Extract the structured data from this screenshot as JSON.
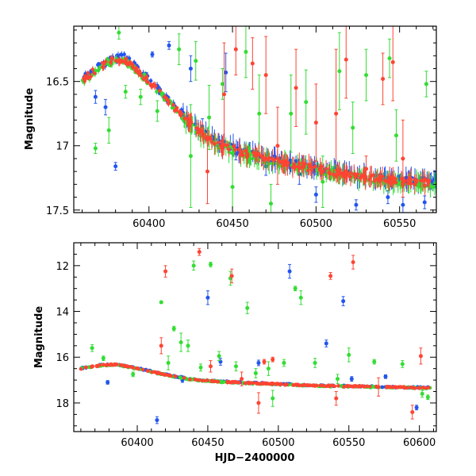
{
  "chart_data": [
    {
      "type": "scatter",
      "panel": "top",
      "title": "",
      "xlabel": "",
      "ylabel": "Magnitude",
      "xlim": [
        60355,
        60572
      ],
      "ylim": [
        17.52,
        16.07
      ],
      "y_inverted": true,
      "grid": false,
      "x_ticks": [
        60400,
        60450,
        60500,
        60550
      ],
      "y_ticks": [
        16.5,
        17,
        17.5
      ],
      "x_tick_labels": [
        "60400",
        "60450",
        "60500",
        "60550"
      ],
      "y_tick_labels": [
        "16.5",
        "17",
        "17.5"
      ],
      "series": [
        {
          "color": "#2255ee",
          "trend_anchors": [
            [
              60360,
              16.48
            ],
            [
              60375,
              16.34
            ],
            [
              60385,
              16.31
            ],
            [
              60395,
              16.42
            ],
            [
              60410,
              16.62
            ],
            [
              60425,
              16.82
            ],
            [
              60440,
              16.97
            ],
            [
              60460,
              17.06
            ],
            [
              60480,
              17.12
            ],
            [
              60500,
              17.17
            ],
            [
              60520,
              17.22
            ],
            [
              60540,
              17.25
            ],
            [
              60560,
              17.27
            ],
            [
              60572,
              17.28
            ]
          ],
          "outliers": [
            [
              60368,
              16.62,
              0.05
            ],
            [
              60374,
              16.7,
              0.06
            ],
            [
              60380,
              17.16,
              0.03
            ],
            [
              60402,
              16.29,
              0.02
            ],
            [
              60412,
              16.22,
              0.03
            ],
            [
              60425,
              16.4,
              0.1
            ],
            [
              60432,
              16.85,
              0.06
            ],
            [
              60446,
              16.43,
              0.15
            ],
            [
              60452,
              17.06,
              0.05
            ],
            [
              60470,
              17.16,
              0.07
            ],
            [
              60490,
              17.22,
              0.08
            ],
            [
              60500,
              17.38,
              0.06
            ],
            [
              60524,
              17.46,
              0.04
            ],
            [
              60543,
              17.4,
              0.05
            ],
            [
              60552,
              17.46,
              0.06
            ],
            [
              60565,
              17.44,
              0.05
            ]
          ]
        },
        {
          "color": "#33dd33",
          "trend_anchors": [
            [
              60360,
              16.5
            ],
            [
              60375,
              16.36
            ],
            [
              60385,
              16.33
            ],
            [
              60395,
              16.44
            ],
            [
              60410,
              16.64
            ],
            [
              60425,
              16.84
            ],
            [
              60440,
              16.99
            ],
            [
              60460,
              17.08
            ],
            [
              60480,
              17.14
            ],
            [
              60500,
              17.19
            ],
            [
              60520,
              17.24
            ],
            [
              60540,
              17.27
            ],
            [
              60560,
              17.29
            ],
            [
              60572,
              17.3
            ]
          ],
          "outliers": [
            [
              60368,
              17.02,
              0.04
            ],
            [
              60376,
              16.88,
              0.1
            ],
            [
              60382,
              16.12,
              0.05
            ],
            [
              60386,
              16.58,
              0.05
            ],
            [
              60395,
              16.62,
              0.06
            ],
            [
              60405,
              16.73,
              0.08
            ],
            [
              60418,
              16.25,
              0.12
            ],
            [
              60425,
              17.08,
              0.4
            ],
            [
              60428,
              16.34,
              0.15
            ],
            [
              60436,
              16.78,
              0.25
            ],
            [
              60444,
              16.52,
              0.12
            ],
            [
              60450,
              17.32,
              0.3
            ],
            [
              60458,
              16.27,
              0.2
            ],
            [
              60466,
              16.75,
              0.3
            ],
            [
              60473,
              17.45,
              0.15
            ],
            [
              60485,
              16.75,
              0.3
            ],
            [
              60494,
              16.66,
              0.25
            ],
            [
              60504,
              17.28,
              0.2
            ],
            [
              60514,
              16.42,
              0.3
            ],
            [
              60522,
              16.86,
              0.2
            ],
            [
              60530,
              16.45,
              0.2
            ],
            [
              60544,
              16.32,
              0.15
            ],
            [
              60548,
              16.92,
              0.2
            ],
            [
              60566,
              16.52,
              0.1
            ]
          ]
        },
        {
          "color": "#ff4433",
          "trend_anchors": [
            [
              60360,
              16.49
            ],
            [
              60375,
              16.35
            ],
            [
              60385,
              16.32
            ],
            [
              60395,
              16.43
            ],
            [
              60410,
              16.63
            ],
            [
              60425,
              16.83
            ],
            [
              60440,
              16.98
            ],
            [
              60460,
              17.07
            ],
            [
              60480,
              17.13
            ],
            [
              60500,
              17.18
            ],
            [
              60520,
              17.23
            ],
            [
              60540,
              17.26
            ],
            [
              60560,
              17.28
            ],
            [
              60572,
              17.29
            ]
          ],
          "outliers": [
            [
              60435,
              17.2,
              0.25
            ],
            [
              60445,
              16.6,
              0.4
            ],
            [
              60452,
              16.25,
              0.2
            ],
            [
              60462,
              16.36,
              0.2
            ],
            [
              60470,
              16.45,
              0.3
            ],
            [
              60477,
              17.0,
              0.3
            ],
            [
              60488,
              16.55,
              0.3
            ],
            [
              60500,
              16.82,
              0.3
            ],
            [
              60512,
              16.75,
              0.5
            ],
            [
              60518,
              16.33,
              0.3
            ],
            [
              60530,
              17.18,
              0.1
            ],
            [
              60540,
              16.48,
              0.2
            ],
            [
              60546,
              16.35,
              0.3
            ],
            [
              60552,
              17.1,
              0.3
            ]
          ]
        }
      ]
    },
    {
      "type": "scatter",
      "panel": "bottom",
      "title": "",
      "xlabel": "HJD−2400000",
      "ylabel": "Magnitude",
      "xlim": [
        60355,
        60612
      ],
      "ylim": [
        19.25,
        11.0
      ],
      "y_inverted": true,
      "grid": false,
      "x_ticks": [
        60400,
        60450,
        60500,
        60550,
        60600
      ],
      "y_ticks": [
        12,
        14,
        16,
        18
      ],
      "x_tick_labels": [
        "60400",
        "60450",
        "60500",
        "60550",
        "60600"
      ],
      "y_tick_labels": [
        "12",
        "14",
        "16",
        "18"
      ],
      "series": [
        {
          "color": "#2255ee",
          "trend_anchors": [
            [
              60360,
              16.48
            ],
            [
              60375,
              16.34
            ],
            [
              60385,
              16.31
            ],
            [
              60395,
              16.42
            ],
            [
              60410,
              16.62
            ],
            [
              60425,
              16.82
            ],
            [
              60440,
              16.97
            ],
            [
              60460,
              17.06
            ],
            [
              60480,
              17.12
            ],
            [
              60500,
              17.17
            ],
            [
              60520,
              17.22
            ],
            [
              60540,
              17.25
            ],
            [
              60560,
              17.27
            ],
            [
              60580,
              17.3
            ],
            [
              60605,
              17.33
            ]
          ],
          "outliers": [
            [
              60379,
              17.1,
              0.08
            ],
            [
              60414,
              18.75,
              0.15
            ],
            [
              60432,
              17.0,
              0.1
            ],
            [
              60450,
              13.4,
              0.3
            ],
            [
              60459,
              16.2,
              0.15
            ],
            [
              60486,
              16.25,
              0.12
            ],
            [
              60508,
              12.25,
              0.3
            ],
            [
              60534,
              15.4,
              0.15
            ],
            [
              60546,
              13.55,
              0.2
            ],
            [
              60552,
              16.95,
              0.1
            ],
            [
              60576,
              16.85,
              0.08
            ],
            [
              60598,
              18.2,
              0.1
            ]
          ]
        },
        {
          "color": "#33dd33",
          "trend_anchors": [
            [
              60360,
              16.5
            ],
            [
              60375,
              16.36
            ],
            [
              60385,
              16.33
            ],
            [
              60395,
              16.44
            ],
            [
              60410,
              16.64
            ],
            [
              60425,
              16.84
            ],
            [
              60440,
              16.99
            ],
            [
              60460,
              17.08
            ],
            [
              60480,
              17.14
            ],
            [
              60500,
              17.19
            ],
            [
              60520,
              17.24
            ],
            [
              60540,
              17.27
            ],
            [
              60560,
              17.29
            ],
            [
              60580,
              17.32
            ],
            [
              60605,
              17.35
            ]
          ],
          "outliers": [
            [
              60368,
              15.6,
              0.15
            ],
            [
              60376,
              16.05,
              0.1
            ],
            [
              60397,
              16.75,
              0.1
            ],
            [
              60417,
              13.6,
              0.05
            ],
            [
              60422,
              16.25,
              0.3
            ],
            [
              60426,
              14.75,
              0.1
            ],
            [
              60431,
              15.35,
              0.4
            ],
            [
              60436,
              15.5,
              0.25
            ],
            [
              60440,
              12.0,
              0.2
            ],
            [
              60445,
              16.45,
              0.15
            ],
            [
              60452,
              11.95,
              0.1
            ],
            [
              60458,
              15.95,
              0.2
            ],
            [
              60466,
              12.55,
              0.3
            ],
            [
              60470,
              16.4,
              0.2
            ],
            [
              60478,
              13.85,
              0.25
            ],
            [
              60484,
              16.7,
              0.2
            ],
            [
              60493,
              16.5,
              0.3
            ],
            [
              60496,
              17.8,
              0.35
            ],
            [
              60504,
              16.25,
              0.15
            ],
            [
              60512,
              13.0,
              0.1
            ],
            [
              60516,
              13.4,
              0.3
            ],
            [
              60526,
              16.25,
              0.2
            ],
            [
              60542,
              16.95,
              0.2
            ],
            [
              60550,
              15.9,
              0.3
            ],
            [
              60568,
              16.2,
              0.1
            ],
            [
              60588,
              16.3,
              0.15
            ],
            [
              60602,
              17.6,
              0.15
            ],
            [
              60606,
              17.75,
              0.1
            ]
          ]
        },
        {
          "color": "#ff4433",
          "trend_anchors": [
            [
              60360,
              16.49
            ],
            [
              60375,
              16.35
            ],
            [
              60385,
              16.32
            ],
            [
              60395,
              16.43
            ],
            [
              60410,
              16.63
            ],
            [
              60425,
              16.83
            ],
            [
              60440,
              16.98
            ],
            [
              60460,
              17.07
            ],
            [
              60480,
              17.13
            ],
            [
              60500,
              17.18
            ],
            [
              60520,
              17.23
            ],
            [
              60540,
              17.26
            ],
            [
              60560,
              17.28
            ],
            [
              60580,
              17.31
            ],
            [
              60605,
              17.34
            ]
          ],
          "outliers": [
            [
              60417,
              15.5,
              0.35
            ],
            [
              60420,
              12.25,
              0.25
            ],
            [
              60444,
              11.4,
              0.15
            ],
            [
              60452,
              16.4,
              0.25
            ],
            [
              60467,
              12.45,
              0.3
            ],
            [
              60474,
              16.95,
              0.3
            ],
            [
              60486,
              18.0,
              0.45
            ],
            [
              60490,
              16.2,
              0.1
            ],
            [
              60496,
              16.1,
              0.1
            ],
            [
              60537,
              12.45,
              0.15
            ],
            [
              60541,
              17.8,
              0.3
            ],
            [
              60553,
              11.85,
              0.3
            ],
            [
              60571,
              17.3,
              0.4
            ],
            [
              60595,
              18.4,
              0.3
            ],
            [
              60601,
              15.95,
              0.35
            ]
          ]
        }
      ]
    }
  ]
}
